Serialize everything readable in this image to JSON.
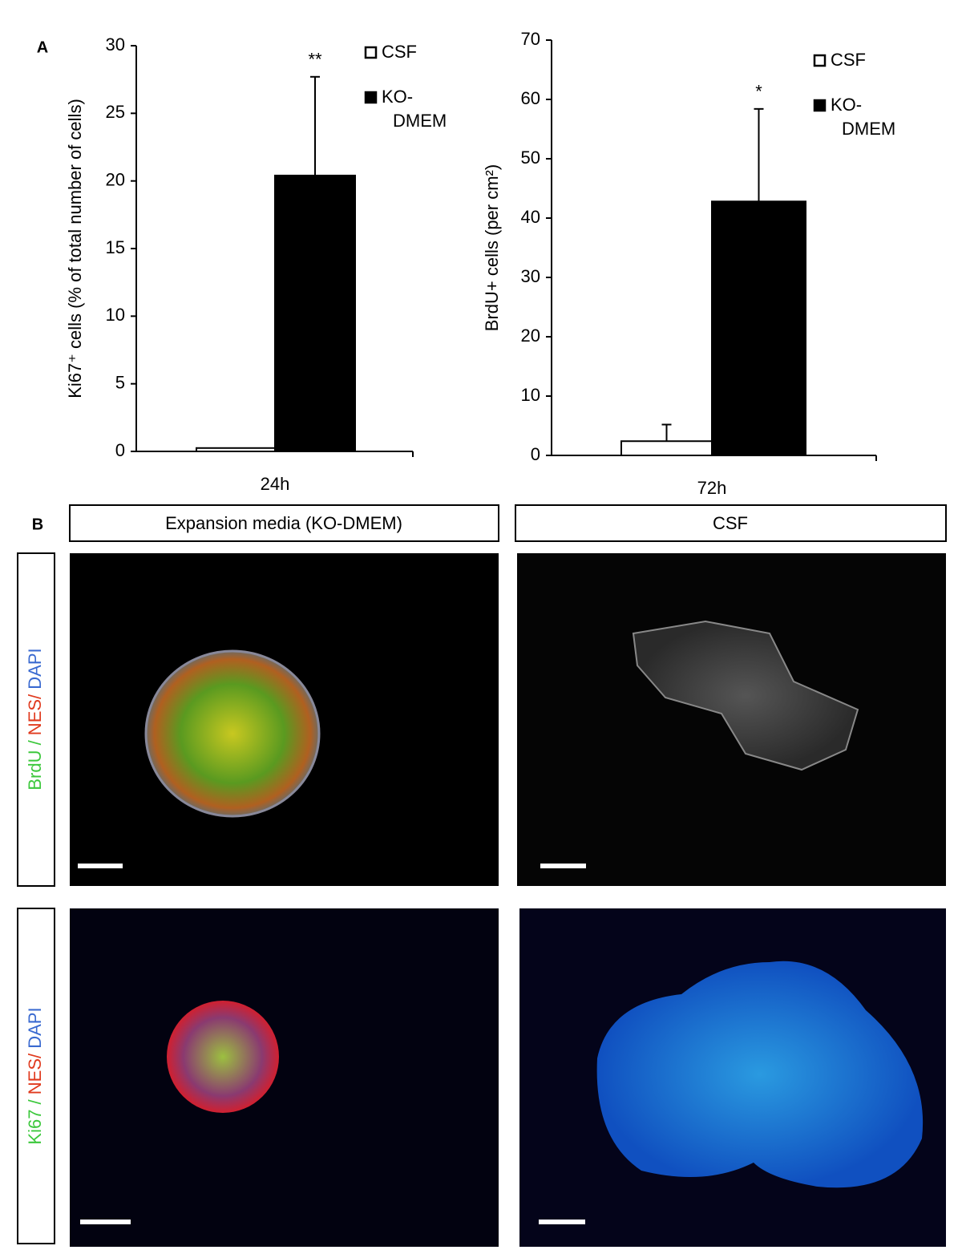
{
  "panel_labels": [
    "A",
    "B"
  ],
  "chart_data": [
    {
      "type": "bar",
      "categories": [
        "24h"
      ],
      "y_label": "Ki67⁺ cells (% of total number of cells)",
      "ylim": [
        0,
        30
      ],
      "yticks": [
        0,
        5,
        10,
        15,
        20,
        25,
        30
      ],
      "series": [
        {
          "name": "CSF",
          "color": "#ffffff",
          "values": [
            0.25
          ]
        },
        {
          "name": "KO-DMEM",
          "color": "#000000",
          "values": [
            20.4
          ],
          "errors": [
            7.3
          ],
          "annotations": [
            "**"
          ]
        }
      ]
    },
    {
      "type": "bar",
      "categories": [
        "72h"
      ],
      "y_label": "BrdU+ cells (per cm²)",
      "ylim": [
        0,
        70
      ],
      "yticks": [
        0,
        10,
        20,
        30,
        40,
        50,
        60,
        70
      ],
      "series": [
        {
          "name": "CSF",
          "color": "#ffffff",
          "values": [
            2.4
          ],
          "errors": [
            2.8
          ]
        },
        {
          "name": "KO-DMEM",
          "color": "#000000",
          "values": [
            42.8
          ],
          "errors": [
            15.6
          ],
          "annotations": [
            "*"
          ]
        }
      ]
    }
  ],
  "panel_b": {
    "columns": [
      "Expansion media (KO-DMEM)",
      "CSF"
    ],
    "rows": [
      [
        "BrdU / ",
        "NES/ ",
        "DAPI"
      ],
      [
        "Ki67 / ",
        "NES/ ",
        "DAPI"
      ]
    ]
  }
}
